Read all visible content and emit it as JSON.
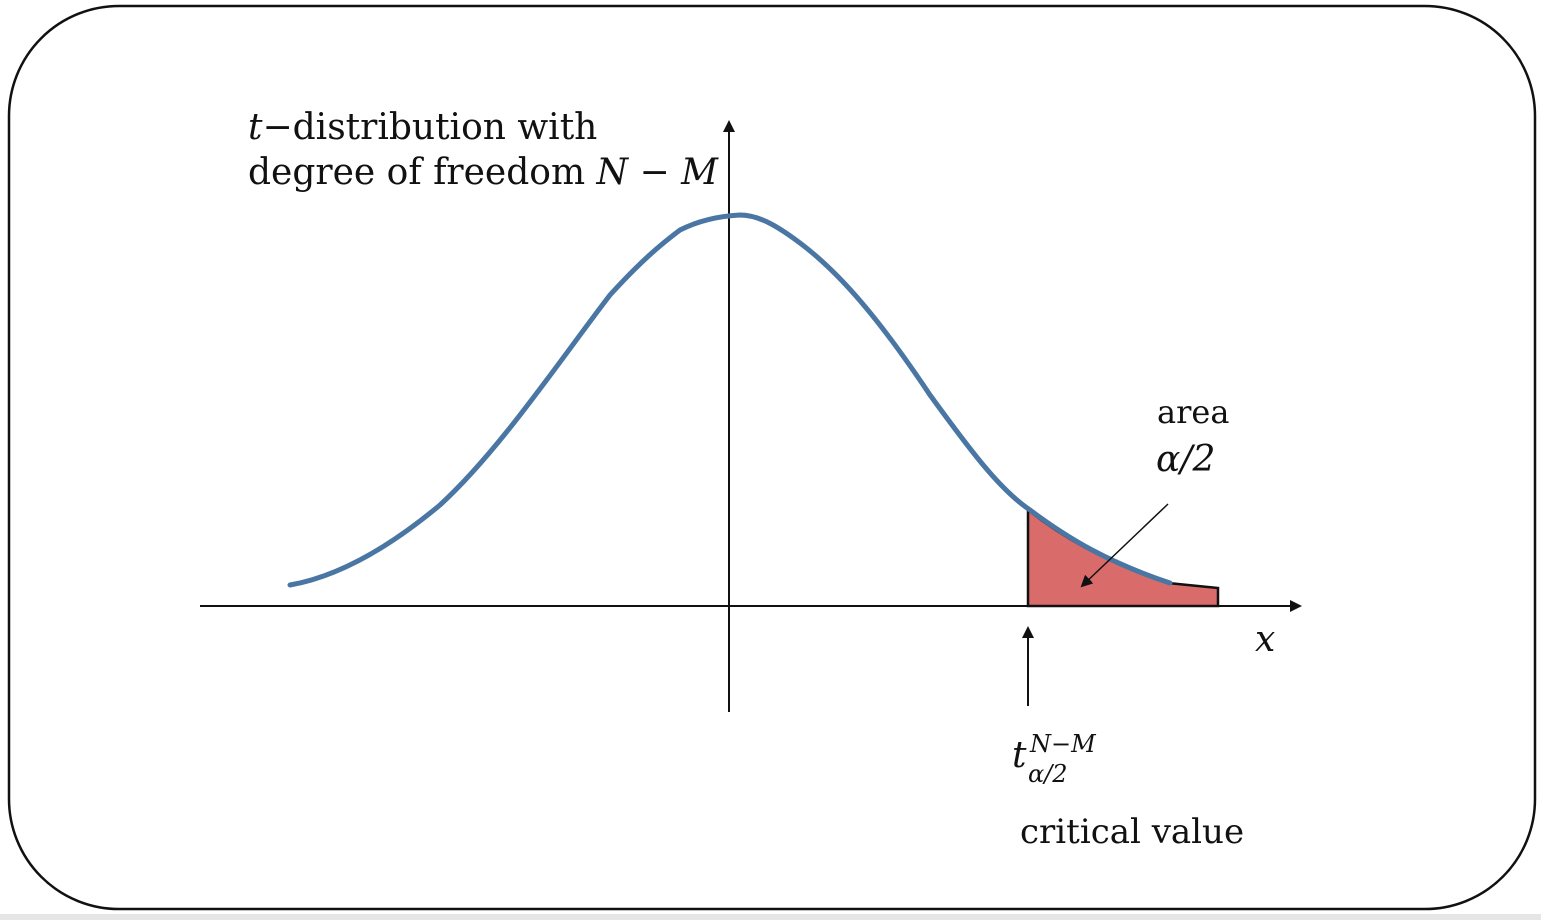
{
  "title": {
    "line1_var": "t",
    "line1_rest": "−distribution with",
    "line2_text": "degree of freedom ",
    "line2_math": "N − M"
  },
  "axis": {
    "x_label": "x"
  },
  "area_label": {
    "word": "area",
    "value": "α/2"
  },
  "critical": {
    "base": "t",
    "superscript": "N−M",
    "subscript": "α/2",
    "caption": "critical value"
  },
  "colors": {
    "curve": "#4a76a4",
    "tail_fill": "#da6b6b",
    "frame": "#111111",
    "axis": "#111111"
  }
}
